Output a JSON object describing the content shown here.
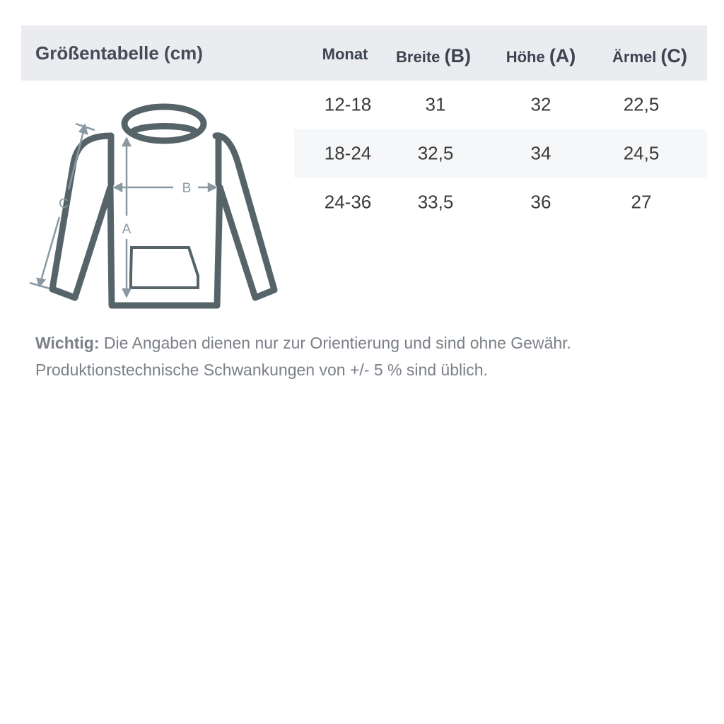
{
  "title": "Größentabelle (cm)",
  "columns": [
    {
      "label": "Monat",
      "letter": ""
    },
    {
      "label": "Breite",
      "letter": "(B)"
    },
    {
      "label": "Höhe",
      "letter": "(A)"
    },
    {
      "label": "Ärmel",
      "letter": "(C)"
    }
  ],
  "rows": [
    [
      "12-18",
      "31",
      "32",
      "22,5"
    ],
    [
      "18-24",
      "32,5",
      "34",
      "24,5"
    ],
    [
      "24-36",
      "33,5",
      "36",
      "27"
    ]
  ],
  "diagram": {
    "label_a": "A",
    "label_b": "B",
    "label_c": "C",
    "line_color": "#56646a",
    "arrow_color": "#8a98a2"
  },
  "note": {
    "strong": "Wichtig:",
    "line1": " Die Angaben dienen nur zur Orientierung und sind ohne Gewähr.",
    "line2": "Produktionstechnische Schwankungen von +/- 5 % sind üblich."
  }
}
